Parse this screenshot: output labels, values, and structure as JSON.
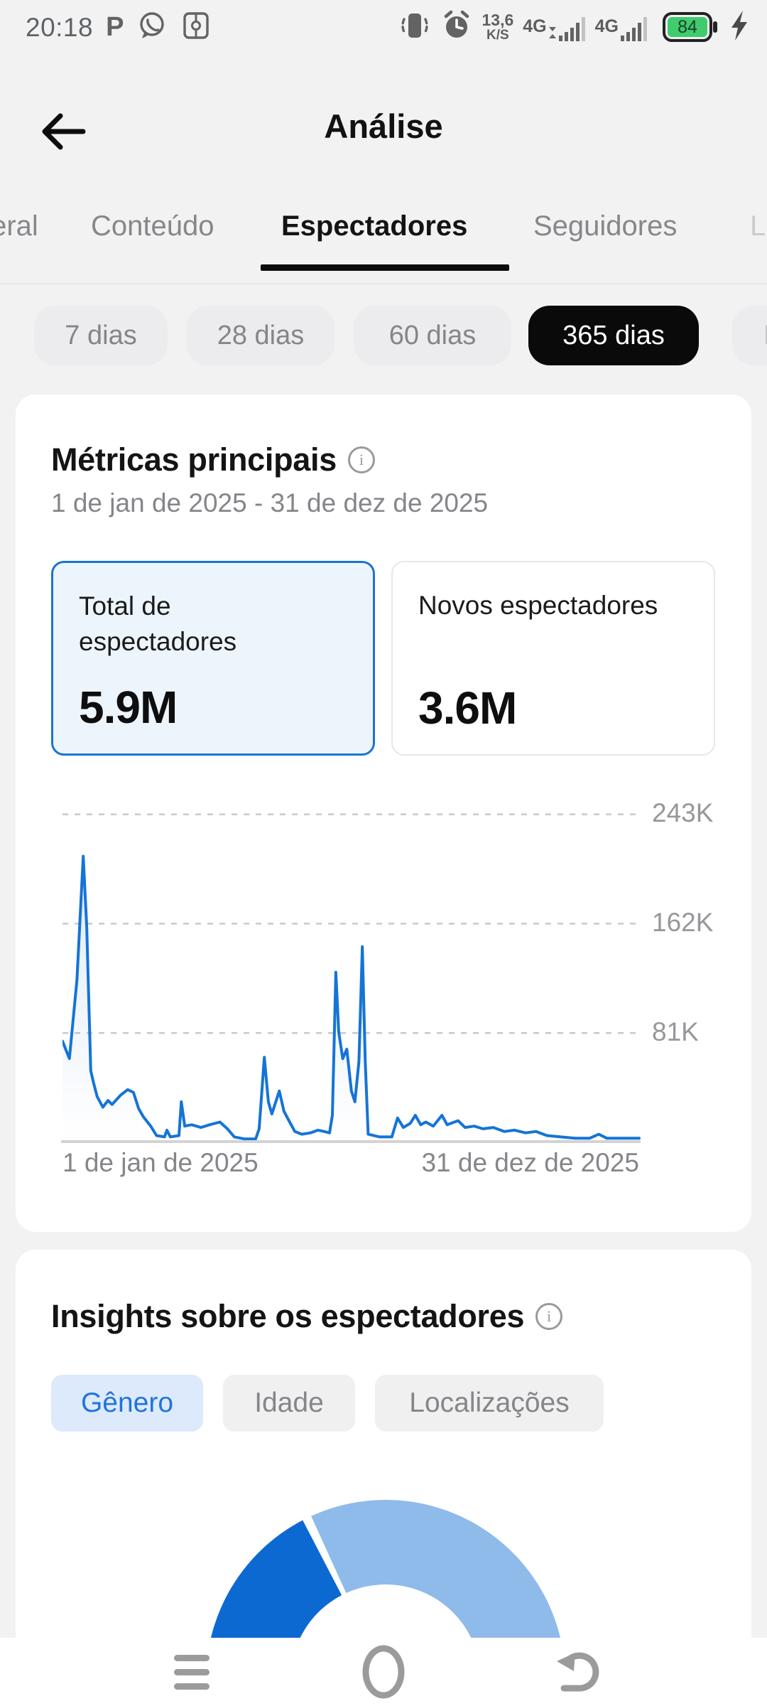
{
  "status_bar": {
    "time": "20:18",
    "p_badge": "P",
    "left_icons": [
      "p-badge",
      "whatsapp-icon",
      "screen-record-icon"
    ],
    "net_speed_value": "13,6",
    "net_speed_unit": "K/S",
    "sim1_type": "4G",
    "sim2_type": "4G",
    "battery_level": "84",
    "right_icons": [
      "vibrate-icon",
      "alarm-icon",
      "signal-bars",
      "battery",
      "charging-bolt"
    ]
  },
  "header": {
    "title": "Análise"
  },
  "tabs": {
    "items": [
      {
        "label": "Geral",
        "active": false
      },
      {
        "label": "Conteúdo",
        "active": false
      },
      {
        "label": "Espectadores",
        "active": true
      },
      {
        "label": "Seguidores",
        "active": false
      },
      {
        "label": "LIVE",
        "active": false
      }
    ]
  },
  "date_filters": {
    "items": [
      {
        "label": "7 dias",
        "selected": false
      },
      {
        "label": "28 dias",
        "selected": false
      },
      {
        "label": "60 dias",
        "selected": false
      },
      {
        "label": "365 dias",
        "selected": true
      },
      {
        "label": "Personalizado",
        "selected": false
      }
    ]
  },
  "metrics_card": {
    "title": "Métricas principais",
    "date_range": "1 de jan de 2025 - 31 de dez de 2025",
    "tiles": [
      {
        "label": "Total de espectadores",
        "value": "5.9M",
        "selected": true
      },
      {
        "label": "Novos espectadores",
        "value": "3.6M",
        "selected": false
      }
    ]
  },
  "insights_card": {
    "title": "Insights sobre os espectadores",
    "filters": [
      {
        "label": "Gênero",
        "selected": true
      },
      {
        "label": "Idade",
        "selected": false
      },
      {
        "label": "Localizações",
        "selected": false
      }
    ]
  },
  "chart_data": [
    {
      "type": "line",
      "context": "Métricas principais - Total de espectadores por dia",
      "x_axis": {
        "start_label": "1 de jan de 2025",
        "end_label": "31 de dez de 2025"
      },
      "y_axis": {
        "tick_labels": [
          "243K",
          "162K",
          "81K"
        ],
        "tick_values_thousands": [
          243,
          162,
          81
        ],
        "min": 0,
        "max_estimated_thousands": 266
      },
      "grid": "dashed-horizontal",
      "line_color": "#1574d6",
      "area_fill_top": "rgba(60,125,200,0.16)",
      "points_x_fraction_value_thousands": [
        [
          0.0,
          75
        ],
        [
          0.012,
          62
        ],
        [
          0.025,
          120
        ],
        [
          0.036,
          212
        ],
        [
          0.042,
          160
        ],
        [
          0.049,
          53
        ],
        [
          0.054,
          44
        ],
        [
          0.06,
          34
        ],
        [
          0.07,
          26
        ],
        [
          0.079,
          31
        ],
        [
          0.086,
          28
        ],
        [
          0.101,
          35
        ],
        [
          0.113,
          39
        ],
        [
          0.123,
          37
        ],
        [
          0.132,
          25
        ],
        [
          0.14,
          19
        ],
        [
          0.153,
          12
        ],
        [
          0.163,
          5
        ],
        [
          0.177,
          4
        ],
        [
          0.181,
          9
        ],
        [
          0.187,
          4
        ],
        [
          0.202,
          5
        ],
        [
          0.206,
          30
        ],
        [
          0.212,
          12
        ],
        [
          0.224,
          13
        ],
        [
          0.24,
          11
        ],
        [
          0.255,
          13
        ],
        [
          0.273,
          15
        ],
        [
          0.286,
          10
        ],
        [
          0.298,
          4
        ],
        [
          0.316,
          2.5
        ],
        [
          0.335,
          2.5
        ],
        [
          0.341,
          10
        ],
        [
          0.35,
          63
        ],
        [
          0.357,
          30
        ],
        [
          0.363,
          21
        ],
        [
          0.376,
          38
        ],
        [
          0.384,
          23
        ],
        [
          0.394,
          15
        ],
        [
          0.403,
          8
        ],
        [
          0.415,
          6
        ],
        [
          0.43,
          7
        ],
        [
          0.443,
          9
        ],
        [
          0.454,
          8
        ],
        [
          0.463,
          7
        ],
        [
          0.468,
          20
        ],
        [
          0.474,
          126
        ],
        [
          0.479,
          82
        ],
        [
          0.486,
          62
        ],
        [
          0.493,
          69
        ],
        [
          0.501,
          38
        ],
        [
          0.507,
          30
        ],
        [
          0.514,
          60
        ],
        [
          0.52,
          145
        ],
        [
          0.525,
          60
        ],
        [
          0.53,
          6
        ],
        [
          0.55,
          4
        ],
        [
          0.571,
          4
        ],
        [
          0.581,
          18
        ],
        [
          0.591,
          11
        ],
        [
          0.603,
          14
        ],
        [
          0.612,
          20
        ],
        [
          0.621,
          13
        ],
        [
          0.63,
          15
        ],
        [
          0.643,
          12
        ],
        [
          0.658,
          20
        ],
        [
          0.667,
          13
        ],
        [
          0.686,
          16
        ],
        [
          0.698,
          11
        ],
        [
          0.714,
          12
        ],
        [
          0.729,
          10
        ],
        [
          0.747,
          11
        ],
        [
          0.766,
          8
        ],
        [
          0.784,
          9
        ],
        [
          0.803,
          7
        ],
        [
          0.821,
          8
        ],
        [
          0.84,
          5
        ],
        [
          0.864,
          4
        ],
        [
          0.889,
          3
        ],
        [
          0.914,
          3
        ],
        [
          0.93,
          6
        ],
        [
          0.944,
          3
        ],
        [
          0.969,
          3
        ],
        [
          1.0,
          3
        ]
      ]
    },
    {
      "type": "donut-semicircle",
      "context": "Insights sobre os espectadores - Gênero",
      "outer_radius_px": 253,
      "inner_radius_px": 134,
      "segments": [
        {
          "name": "segment-dark-blue",
          "color": "#0d69d2",
          "from_deg": 180,
          "to_deg": 117.5,
          "share_estimated_pct": 35
        },
        {
          "name": "segment-light-blue",
          "color": "#8fbbea",
          "from_deg": 114.5,
          "to_deg": 0,
          "share_estimated_pct": 65
        }
      ]
    }
  ],
  "colors": {
    "page_bg": "#f2f2f3",
    "card_bg": "#ffffff",
    "accent_blue": "#1a74d2",
    "selected_tile_bg": "#edf5fc",
    "pill_selected_bg": "#0a0a0a",
    "genero_pill_bg": "#dceafb",
    "genero_pill_text": "#2273dd",
    "battery_green": "#3ecc6d"
  },
  "nav_bar": {
    "icons": [
      "menu-icon",
      "home-circle-icon",
      "back-curved-icon"
    ]
  }
}
